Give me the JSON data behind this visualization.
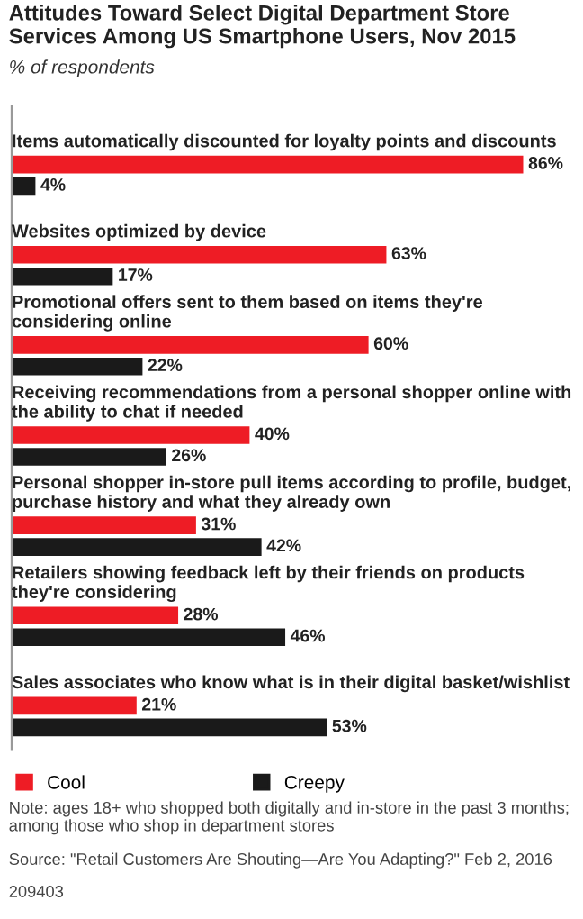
{
  "chart_data": {
    "type": "bar",
    "orientation": "horizontal",
    "title": "Attitudes Toward Select Digital Department Store Services Among US Smartphone Users, Nov 2015",
    "subtitle": "% of respondents",
    "categories": [
      "Items automatically discounted for loyalty points and discounts",
      "Websites optimized by device",
      "Promotional offers sent to them based on items they're considering online",
      "Receiving recommendations from a personal shopper online with the ability to chat if needed",
      "Personal shopper in-store pull items according to profile, budget, purchase history and what they already own",
      "Retailers showing feedback left by their friends on products they're considering",
      "Sales associates who know what is in their digital basket/wishlist"
    ],
    "series": [
      {
        "name": "Cool",
        "color": "#ee1c25",
        "values": [
          86,
          63,
          60,
          40,
          31,
          28,
          21
        ],
        "value_labels": [
          "86%",
          "63%",
          "60%",
          "40%",
          "31%",
          "28%",
          "21%"
        ]
      },
      {
        "name": "Creepy",
        "color": "#1a1a1a",
        "values": [
          4,
          17,
          22,
          26,
          42,
          46,
          53
        ],
        "value_labels": [
          "4%",
          "17%",
          "22%",
          "26%",
          "42%",
          "46%",
          "53%"
        ]
      }
    ],
    "legend": "bottom",
    "annotations": [
      "Note: ages 18+ who shopped both digitally and in-store in the past 3 months; among those who shop in department stores",
      "Source: \"Retail Customers Are Shouting—Are You Adapting?\" Feb 2, 2016",
      "209403"
    ]
  }
}
